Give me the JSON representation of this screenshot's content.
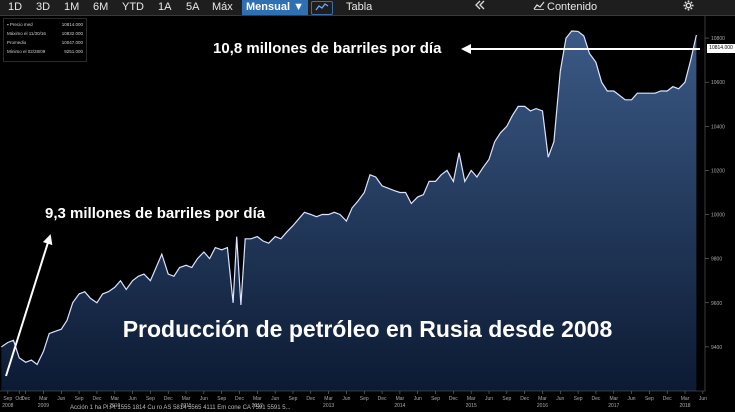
{
  "toolbar": {
    "ranges": [
      "1D",
      "3D",
      "1M",
      "6M",
      "YTD",
      "1A",
      "5A",
      "Máx"
    ],
    "period_label": "Mensual",
    "period_caret": "▼",
    "chart_icon": "line-chart-icon",
    "table_label": "Tabla",
    "collapse_icon": "double-chevron-left-icon",
    "content_icon": "content-chart-icon",
    "content_label": "Contenido",
    "settings_icon": "gear-icon"
  },
  "legend": {
    "rows": [
      {
        "label": "Precio med",
        "value": "10814.000"
      },
      {
        "label": "Máximo el 11/30/16",
        "value": "10832.000"
      },
      {
        "label": "Promedio",
        "value": "10047.000"
      },
      {
        "label": "Mínimo el 02/28/09",
        "value": "9251.000"
      }
    ]
  },
  "annotations": {
    "top": "10,8 millones de barriles por día",
    "left": "9,3 millones de barriles por día",
    "caption": "Producción de petróleo en Rusia desde 2008"
  },
  "price_tag": "10814.000",
  "bottom_text": "Acción 1 ha Pl.Pt 1555 1814 Cu ro AS 5814 5565 4111 Em cone CA 7591 5591 5...",
  "colors": {
    "line": "#dbe3ff",
    "fill_top": "#3b5a86",
    "fill_bottom": "#0c1a33",
    "background": "#000000",
    "selected_button": "#2f6fb3",
    "arrows": "#ffffff"
  },
  "chart_data": {
    "type": "area",
    "title": "",
    "xlabel": "",
    "ylabel": "",
    "ylim": [
      9200,
      10900
    ],
    "yticks": [
      "9400",
      "9600",
      "9800",
      "10000",
      "10200",
      "10400",
      "10600",
      "10800"
    ],
    "y_label_axis": "right",
    "grid": false,
    "x_ticks": [
      {
        "x": 2008.67,
        "label": "Sep",
        "year": "2008"
      },
      {
        "x": 2008.83,
        "label": "Oct",
        "year": ""
      },
      {
        "x": 2008.92,
        "label": "Dec",
        "year": ""
      },
      {
        "x": 2009.17,
        "label": "Mar",
        "year": "2009"
      },
      {
        "x": 2009.42,
        "label": "Jun",
        "year": ""
      },
      {
        "x": 2009.67,
        "label": "Sep",
        "year": ""
      },
      {
        "x": 2009.92,
        "label": "Dec",
        "year": ""
      },
      {
        "x": 2010.17,
        "label": "Mar",
        "year": "2010"
      },
      {
        "x": 2010.42,
        "label": "Jun",
        "year": ""
      },
      {
        "x": 2010.67,
        "label": "Sep",
        "year": ""
      },
      {
        "x": 2010.92,
        "label": "Dec",
        "year": ""
      },
      {
        "x": 2011.17,
        "label": "Mar",
        "year": "2011"
      },
      {
        "x": 2011.42,
        "label": "Jun",
        "year": ""
      },
      {
        "x": 2011.67,
        "label": "Sep",
        "year": ""
      },
      {
        "x": 2011.92,
        "label": "Dec",
        "year": ""
      },
      {
        "x": 2012.17,
        "label": "Mar",
        "year": "2012"
      },
      {
        "x": 2012.42,
        "label": "Jun",
        "year": ""
      },
      {
        "x": 2012.67,
        "label": "Sep",
        "year": ""
      },
      {
        "x": 2012.92,
        "label": "Dec",
        "year": ""
      },
      {
        "x": 2013.17,
        "label": "Mar",
        "year": "2013"
      },
      {
        "x": 2013.42,
        "label": "Jun",
        "year": ""
      },
      {
        "x": 2013.67,
        "label": "Sep",
        "year": ""
      },
      {
        "x": 2013.92,
        "label": "Dec",
        "year": ""
      },
      {
        "x": 2014.17,
        "label": "Mar",
        "year": "2014"
      },
      {
        "x": 2014.42,
        "label": "Jun",
        "year": ""
      },
      {
        "x": 2014.67,
        "label": "Sep",
        "year": ""
      },
      {
        "x": 2014.92,
        "label": "Dec",
        "year": ""
      },
      {
        "x": 2015.17,
        "label": "Mar",
        "year": "2015"
      },
      {
        "x": 2015.42,
        "label": "Jun",
        "year": ""
      },
      {
        "x": 2015.67,
        "label": "Sep",
        "year": ""
      },
      {
        "x": 2015.92,
        "label": "Dec",
        "year": ""
      },
      {
        "x": 2016.17,
        "label": "Mar",
        "year": "2016"
      },
      {
        "x": 2016.42,
        "label": "Jun",
        "year": ""
      },
      {
        "x": 2016.67,
        "label": "Sep",
        "year": ""
      },
      {
        "x": 2016.92,
        "label": "Dec",
        "year": ""
      },
      {
        "x": 2017.17,
        "label": "Mar",
        "year": "2017"
      },
      {
        "x": 2017.42,
        "label": "Jun",
        "year": ""
      },
      {
        "x": 2017.67,
        "label": "Sep",
        "year": ""
      },
      {
        "x": 2017.92,
        "label": "Dec",
        "year": ""
      },
      {
        "x": 2018.17,
        "label": "Mar",
        "year": "2018"
      },
      {
        "x": 2018.42,
        "label": "Jun",
        "year": ""
      }
    ],
    "series": [
      {
        "points": [
          [
            2008.58,
            9400
          ],
          [
            2008.67,
            9420
          ],
          [
            2008.75,
            9430
          ],
          [
            2008.83,
            9350
          ],
          [
            2008.92,
            9330
          ],
          [
            2009.0,
            9340
          ],
          [
            2009.08,
            9320
          ],
          [
            2009.17,
            9380
          ],
          [
            2009.25,
            9460
          ],
          [
            2009.33,
            9470
          ],
          [
            2009.42,
            9480
          ],
          [
            2009.5,
            9520
          ],
          [
            2009.58,
            9600
          ],
          [
            2009.67,
            9640
          ],
          [
            2009.75,
            9650
          ],
          [
            2009.83,
            9620
          ],
          [
            2009.92,
            9600
          ],
          [
            2010.0,
            9640
          ],
          [
            2010.08,
            9650
          ],
          [
            2010.17,
            9670
          ],
          [
            2010.25,
            9700
          ],
          [
            2010.33,
            9660
          ],
          [
            2010.42,
            9700
          ],
          [
            2010.5,
            9720
          ],
          [
            2010.58,
            9730
          ],
          [
            2010.67,
            9700
          ],
          [
            2010.75,
            9760
          ],
          [
            2010.83,
            9820
          ],
          [
            2010.92,
            9730
          ],
          [
            2011.0,
            9720
          ],
          [
            2011.08,
            9760
          ],
          [
            2011.17,
            9770
          ],
          [
            2011.25,
            9760
          ],
          [
            2011.33,
            9800
          ],
          [
            2011.42,
            9830
          ],
          [
            2011.5,
            9800
          ],
          [
            2011.58,
            9850
          ],
          [
            2011.67,
            9840
          ],
          [
            2011.75,
            9850
          ],
          [
            2011.83,
            9600
          ],
          [
            2011.88,
            9900
          ],
          [
            2011.94,
            9590
          ],
          [
            2012.0,
            9890
          ],
          [
            2012.08,
            9890
          ],
          [
            2012.17,
            9900
          ],
          [
            2012.25,
            9880
          ],
          [
            2012.33,
            9870
          ],
          [
            2012.42,
            9900
          ],
          [
            2012.5,
            9890
          ],
          [
            2012.58,
            9920
          ],
          [
            2012.67,
            9950
          ],
          [
            2012.75,
            9980
          ],
          [
            2012.83,
            10010
          ],
          [
            2012.92,
            10000
          ],
          [
            2013.0,
            9990
          ],
          [
            2013.08,
            10000
          ],
          [
            2013.17,
            10000
          ],
          [
            2013.25,
            10010
          ],
          [
            2013.33,
            10000
          ],
          [
            2013.42,
            9970
          ],
          [
            2013.5,
            10030
          ],
          [
            2013.58,
            10060
          ],
          [
            2013.67,
            10100
          ],
          [
            2013.75,
            10180
          ],
          [
            2013.83,
            10170
          ],
          [
            2013.92,
            10130
          ],
          [
            2014.0,
            10120
          ],
          [
            2014.08,
            10110
          ],
          [
            2014.17,
            10100
          ],
          [
            2014.25,
            10100
          ],
          [
            2014.33,
            10050
          ],
          [
            2014.42,
            10080
          ],
          [
            2014.5,
            10090
          ],
          [
            2014.58,
            10150
          ],
          [
            2014.67,
            10150
          ],
          [
            2014.75,
            10180
          ],
          [
            2014.83,
            10200
          ],
          [
            2014.92,
            10150
          ],
          [
            2015.0,
            10280
          ],
          [
            2015.08,
            10150
          ],
          [
            2015.17,
            10200
          ],
          [
            2015.25,
            10170
          ],
          [
            2015.33,
            10210
          ],
          [
            2015.42,
            10250
          ],
          [
            2015.5,
            10330
          ],
          [
            2015.58,
            10370
          ],
          [
            2015.67,
            10400
          ],
          [
            2015.75,
            10450
          ],
          [
            2015.83,
            10490
          ],
          [
            2015.92,
            10490
          ],
          [
            2016.0,
            10470
          ],
          [
            2016.08,
            10480
          ],
          [
            2016.17,
            10470
          ],
          [
            2016.25,
            10260
          ],
          [
            2016.33,
            10330
          ],
          [
            2016.42,
            10650
          ],
          [
            2016.5,
            10800
          ],
          [
            2016.58,
            10832
          ],
          [
            2016.67,
            10830
          ],
          [
            2016.75,
            10810
          ],
          [
            2016.83,
            10730
          ],
          [
            2016.92,
            10690
          ],
          [
            2017.0,
            10600
          ],
          [
            2017.08,
            10560
          ],
          [
            2017.17,
            10560
          ],
          [
            2017.25,
            10540
          ],
          [
            2017.33,
            10520
          ],
          [
            2017.42,
            10520
          ],
          [
            2017.5,
            10550
          ],
          [
            2017.58,
            10550
          ],
          [
            2017.67,
            10550
          ],
          [
            2017.75,
            10550
          ],
          [
            2017.83,
            10560
          ],
          [
            2017.92,
            10560
          ],
          [
            2018.0,
            10580
          ],
          [
            2018.08,
            10570
          ],
          [
            2018.17,
            10600
          ],
          [
            2018.25,
            10700
          ],
          [
            2018.33,
            10814
          ]
        ]
      }
    ]
  }
}
